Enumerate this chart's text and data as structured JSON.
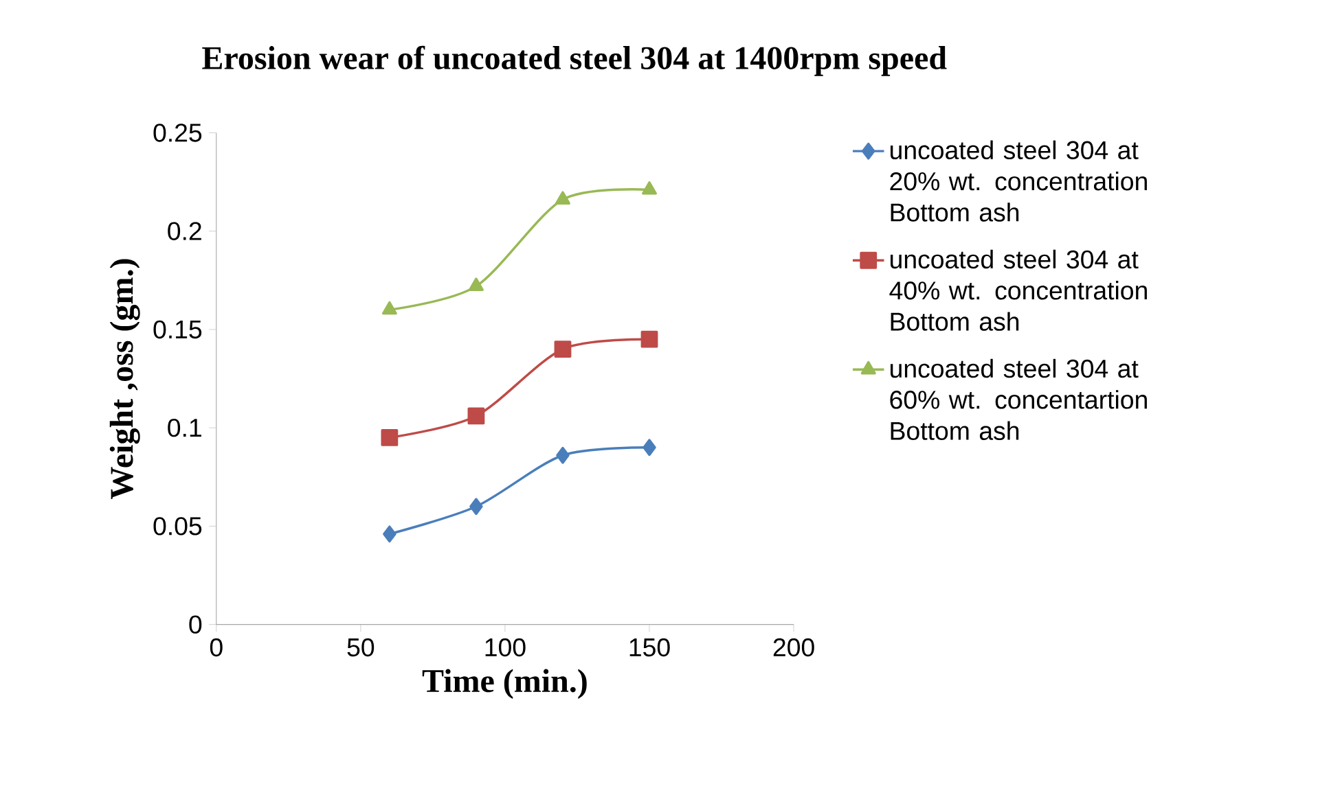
{
  "chart_data": {
    "type": "line",
    "title": "Erosion wear of uncoated steel 304 at 1400rpm speed",
    "xlabel": "Time (min.)",
    "ylabel": "Weight ,oss (gm.)",
    "xlim": [
      0,
      200
    ],
    "xticks": [
      0,
      50,
      100,
      150,
      200
    ],
    "ylim": [
      0,
      0.25
    ],
    "yticks": [
      0,
      0.05,
      0.1,
      0.15,
      0.2,
      0.25
    ],
    "grid": false,
    "legend": "right",
    "series": [
      {
        "name": "uncoated steel 304 at 20% wt. concentration Bottom ash",
        "color": "#4a7ebb",
        "marker": "diamond",
        "x": [
          60,
          90,
          120,
          150
        ],
        "values": [
          0.046,
          0.06,
          0.086,
          0.09
        ]
      },
      {
        "name": "uncoated steel 304 at 40% wt. concentration Bottom ash",
        "color": "#be4b48",
        "marker": "square",
        "x": [
          60,
          90,
          120,
          150
        ],
        "values": [
          0.095,
          0.106,
          0.14,
          0.145
        ]
      },
      {
        "name": "uncoated steel 304 at 60% wt. concentartion Bottom ash",
        "color": "#98b954",
        "marker": "triangle",
        "x": [
          60,
          90,
          120,
          150
        ],
        "values": [
          0.16,
          0.172,
          0.216,
          0.221
        ]
      }
    ]
  }
}
